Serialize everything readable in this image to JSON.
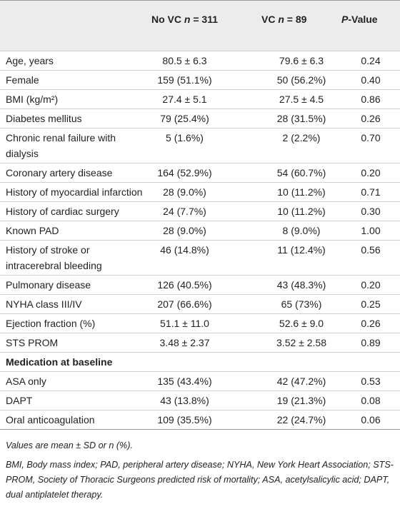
{
  "table": {
    "header": [
      [
        {
          "text": "No VC "
        },
        {
          "text": "n",
          "italic": true
        },
        {
          "text": " = 311"
        }
      ],
      [
        {
          "text": "VC "
        },
        {
          "text": "n",
          "italic": true
        },
        {
          "text": " = 89"
        }
      ],
      [
        {
          "text": "P",
          "italic": true
        },
        {
          "text": "-Value"
        }
      ]
    ],
    "rows": [
      [
        "Age, years",
        "80.5 ± 6.3",
        "79.6 ± 6.3",
        "0.24"
      ],
      [
        "Female",
        "159 (51.1%)",
        "50 (56.2%)",
        "0.40"
      ],
      [
        "BMI (kg/m²)",
        "27.4 ± 5.1",
        "27.5 ± 4.5",
        "0.86"
      ],
      [
        "Diabetes mellitus",
        "79 (25.4%)",
        "28 (31.5%)",
        "0.26"
      ],
      [
        "Chronic renal failure with dialysis",
        "5 (1.6%)",
        "2 (2.2%)",
        "0.70"
      ],
      [
        "Coronary artery disease",
        "164 (52.9%)",
        "54 (60.7%)",
        "0.20"
      ],
      [
        "History of myocardial infarction",
        "28 (9.0%)",
        "10 (11.2%)",
        "0.71"
      ],
      [
        "History of cardiac surgery",
        "24 (7.7%)",
        "10 (11.2%)",
        "0.30"
      ],
      [
        "Known PAD",
        "28 (9.0%)",
        "8 (9.0%)",
        "1.00"
      ],
      [
        "History of stroke or intracerebral bleeding",
        "46 (14.8%)",
        "11 (12.4%)",
        "0.56"
      ],
      [
        "Pulmonary disease",
        "126 (40.5%)",
        "43 (48.3%)",
        "0.20"
      ],
      [
        "NYHA class III/IV",
        "207 (66.6%)",
        "65 (73%)",
        "0.25"
      ],
      [
        "Ejection fraction (%)",
        "51.1 ± 11.0",
        "52.6 ± 9.0",
        "0.26"
      ],
      [
        "STS PROM",
        "3.48 ± 2.37",
        "3.52 ± 2.58",
        "0.89"
      ],
      {
        "section": "Medication at baseline"
      },
      [
        "ASA only",
        "135 (43.4%)",
        "42 (47.2%)",
        "0.53"
      ],
      [
        "DAPT",
        "43 (13.8%)",
        "19 (21.3%)",
        "0.08"
      ],
      [
        "Oral anticoagulation",
        "109 (35.5%)",
        "22 (24.7%)",
        "0.06"
      ]
    ]
  },
  "footnotes": [
    "Values are mean ± SD or n (%).",
    "BMI, Body mass index; PAD, peripheral artery disease; NYHA, New York Heart Association; STS-PROM, Society of Thoracic Surgeons predicted risk of mortality; ASA, acetylsalicylic acid; DAPT, dual antiplatelet therapy."
  ]
}
